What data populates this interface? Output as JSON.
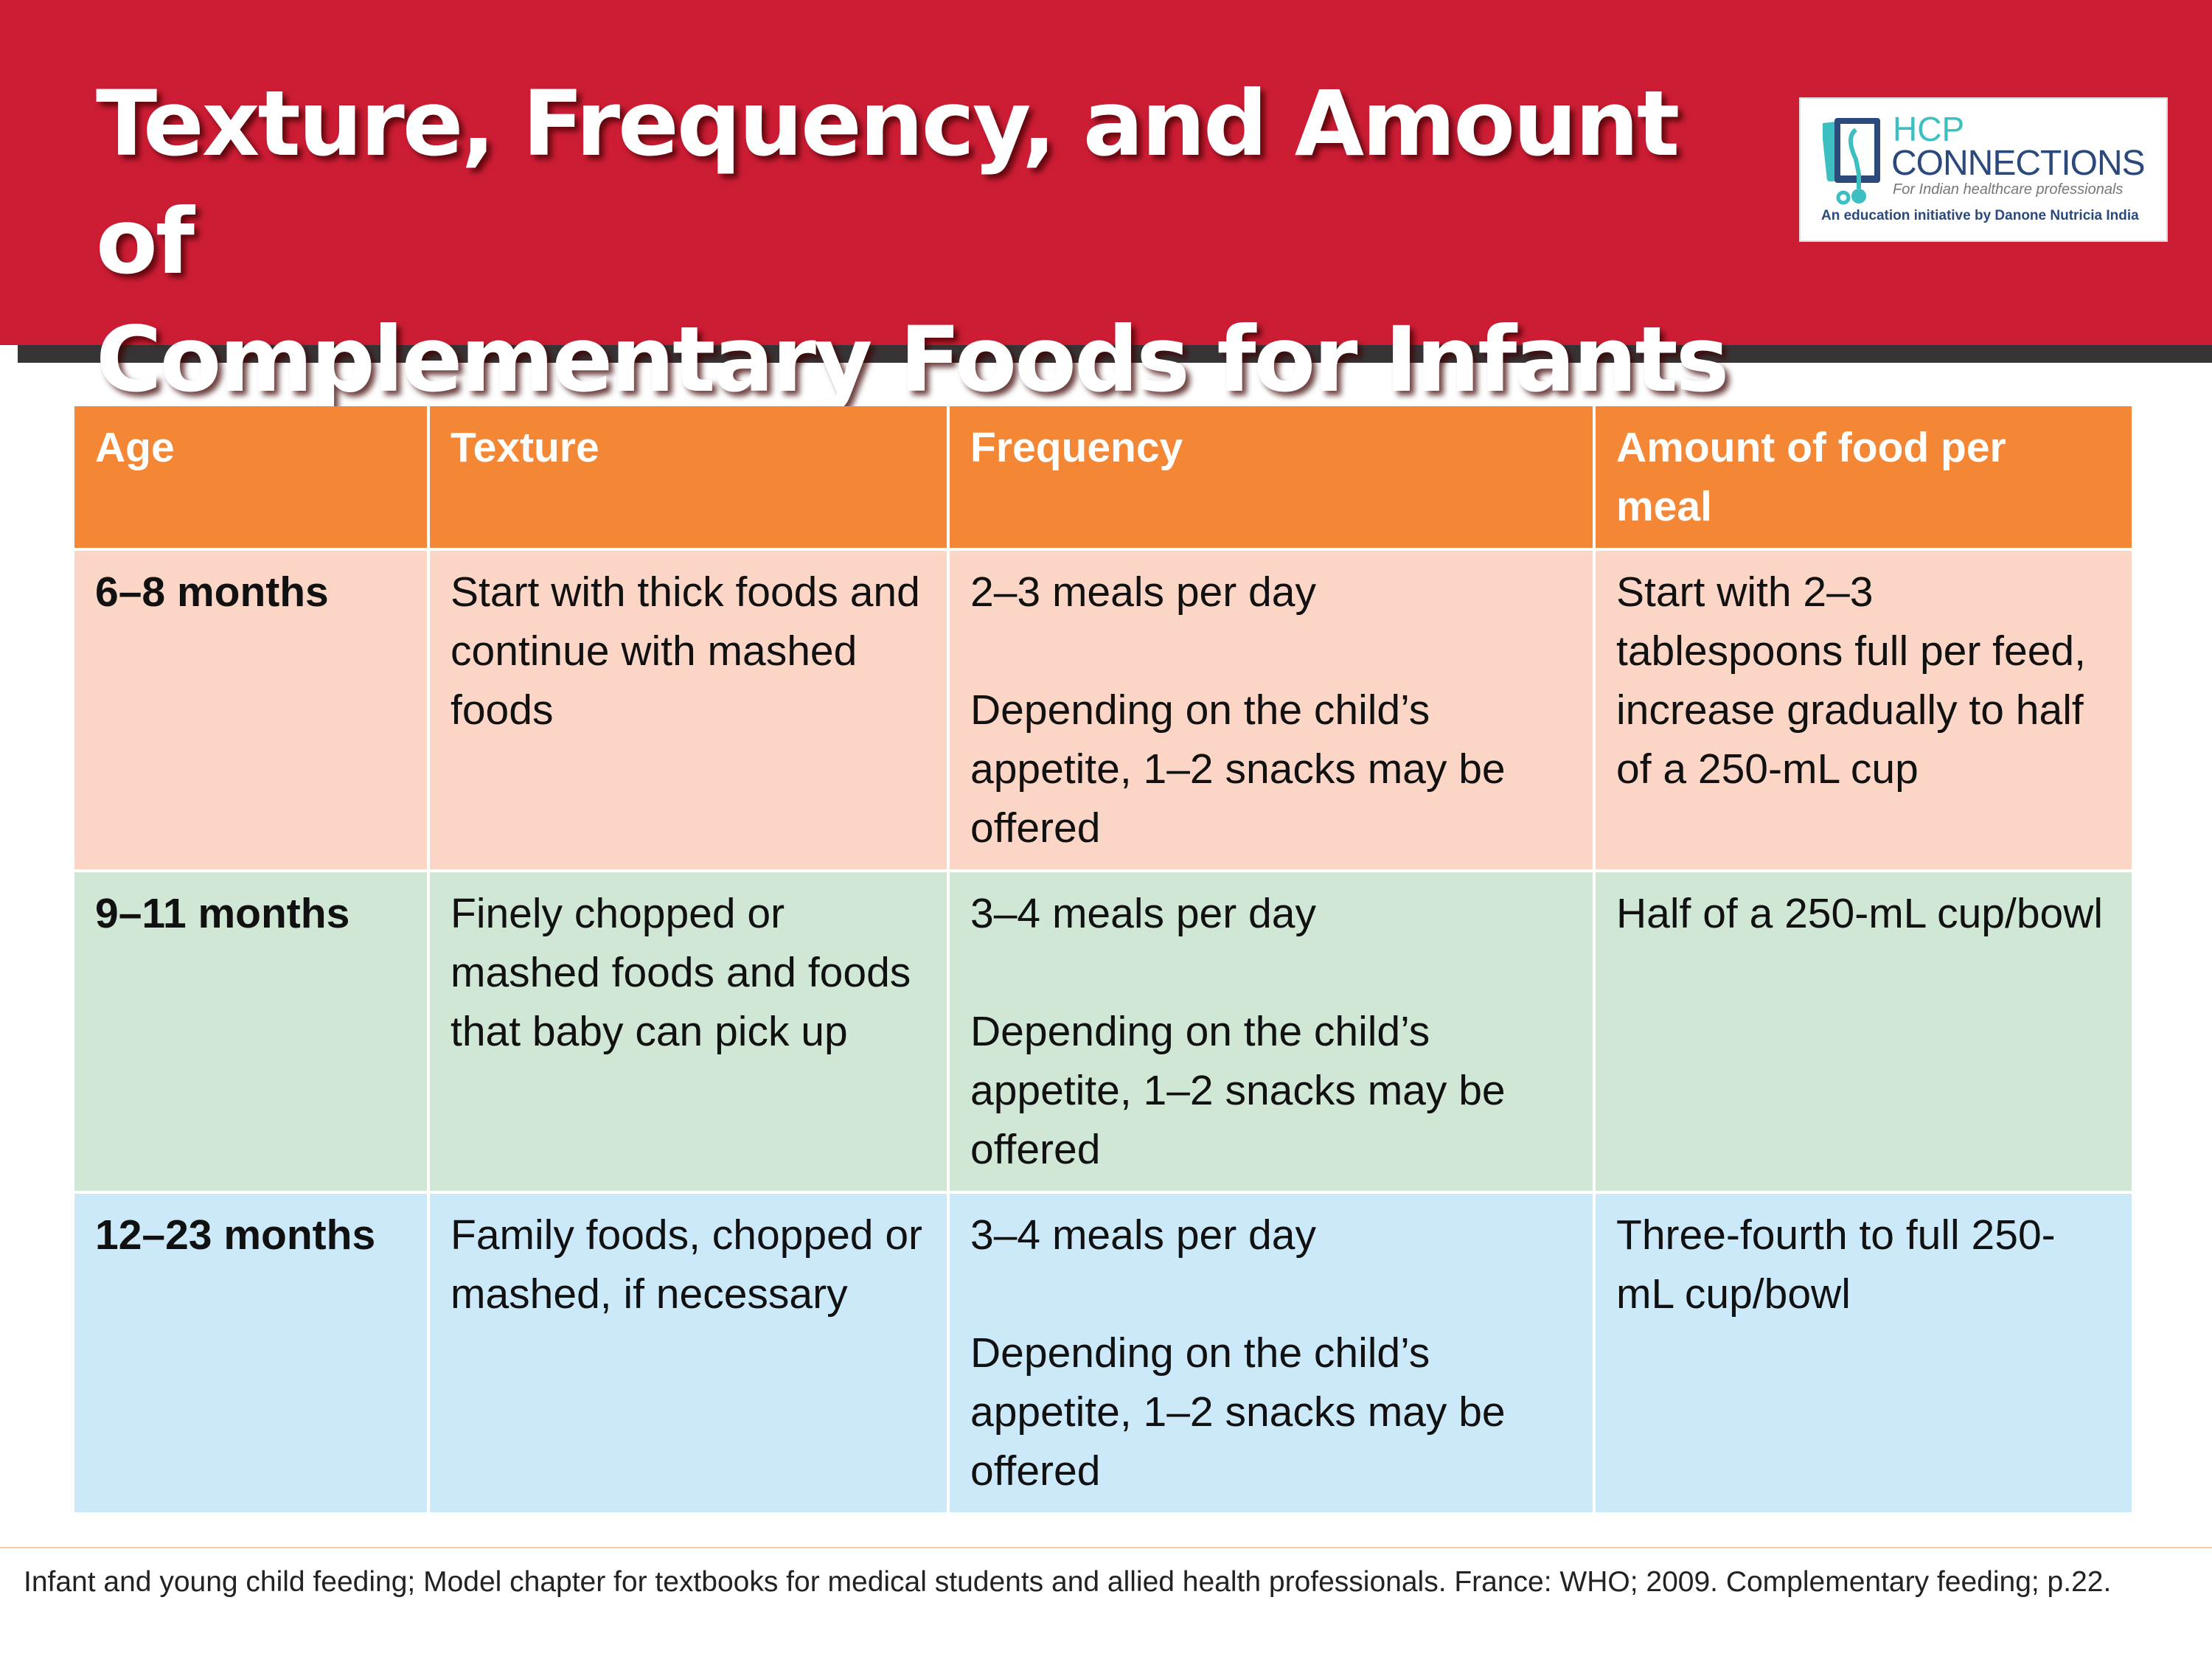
{
  "title": {
    "line1": "Texture, Frequency, and Amount of",
    "line2": "Complementary Foods for Infants"
  },
  "logo": {
    "hcp": "HCP",
    "connections": "CONNECTIONS",
    "tagline": "For Indian healthcare professionals",
    "initiative": "An education initiative by Danone Nutricia India",
    "icon": "tablet-stethoscope-icon"
  },
  "table": {
    "headers": [
      "Age",
      "Texture",
      "Frequency",
      "Amount of food per meal"
    ],
    "rows": [
      {
        "age": "6–8 months",
        "texture": "Start with thick foods and continue with mashed foods",
        "frequency": "2–3 meals per day",
        "frequency_note": "Depending on the child’s appetite, 1–2 snacks may be offered",
        "amount": "Start with 2–3 tablespoons full per feed, increase gradually to half of a 250-mL cup"
      },
      {
        "age": "9–11 months",
        "texture": "Finely chopped or mashed foods and foods that baby can pick up",
        "frequency": "3–4 meals per day",
        "frequency_note": "Depending on the child’s appetite, 1–2 snacks may be offered",
        "amount": "Half of a 250-mL cup/bowl"
      },
      {
        "age": "12–23 months",
        "texture": "Family foods, chopped or mashed, if necessary",
        "frequency": "3–4 meals per day",
        "frequency_note": "Depending on the child’s appetite, 1–2 snacks may be offered",
        "amount": "Three-fourth to full 250-mL cup/bowl"
      }
    ]
  },
  "footer": "Infant and young child feeding; Model chapter for textbooks for medical students and allied health professionals. France: WHO; 2009. Complementary feeding; p.22.",
  "colors": {
    "header_red": "#cd1d35",
    "table_header": "#f38735",
    "row1": "#fbd5c5",
    "row2": "#d0e7d6",
    "row3": "#cce9f9"
  }
}
